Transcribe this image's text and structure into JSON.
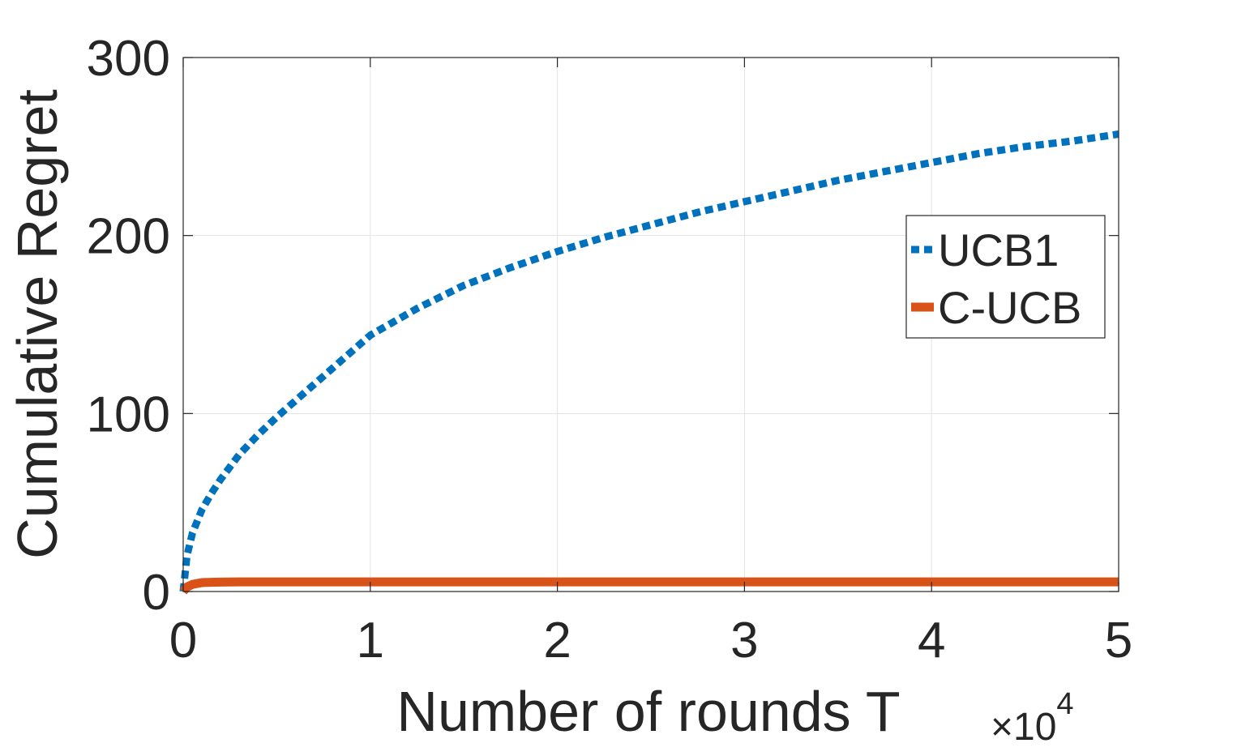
{
  "chart_data": {
    "type": "line",
    "title": "",
    "xlabel": "Number of rounds T",
    "ylabel": "Cumulative Regret",
    "x_multiplier": "×10",
    "x_multiplier_exp": "4",
    "xlim": [
      0,
      5
    ],
    "ylim": [
      0,
      300
    ],
    "xticks": [
      "0",
      "1",
      "2",
      "3",
      "4",
      "5"
    ],
    "yticks": [
      "0",
      "100",
      "200",
      "300"
    ],
    "grid": true,
    "legend_position": "upper-right",
    "x": [
      0,
      0.02,
      0.05,
      0.1,
      0.15,
      0.2,
      0.3,
      0.4,
      0.5,
      0.75,
      1,
      1.25,
      1.5,
      1.75,
      2,
      2.25,
      2.5,
      2.75,
      3,
      3.25,
      3.5,
      3.75,
      4,
      4.25,
      4.5,
      4.75,
      5
    ],
    "series": [
      {
        "name": "UCB1",
        "color": "#0072BD",
        "style": "dotted",
        "values": [
          0,
          20,
          33,
          46,
          55,
          63,
          77,
          88,
          98,
          121,
          144,
          159,
          172,
          182,
          191,
          199,
          206,
          213,
          219,
          225,
          231,
          236,
          241,
          246,
          250,
          253,
          257
        ]
      },
      {
        "name": "C-UCB",
        "color": "#D95319",
        "style": "solid",
        "values": [
          0,
          2.5,
          4,
          5,
          5.2,
          5.3,
          5.4,
          5.4,
          5.4,
          5.4,
          5.4,
          5.4,
          5.4,
          5.4,
          5.4,
          5.4,
          5.4,
          5.4,
          5.4,
          5.4,
          5.4,
          5.4,
          5.4,
          5.4,
          5.4,
          5.4,
          5.4
        ]
      }
    ]
  }
}
